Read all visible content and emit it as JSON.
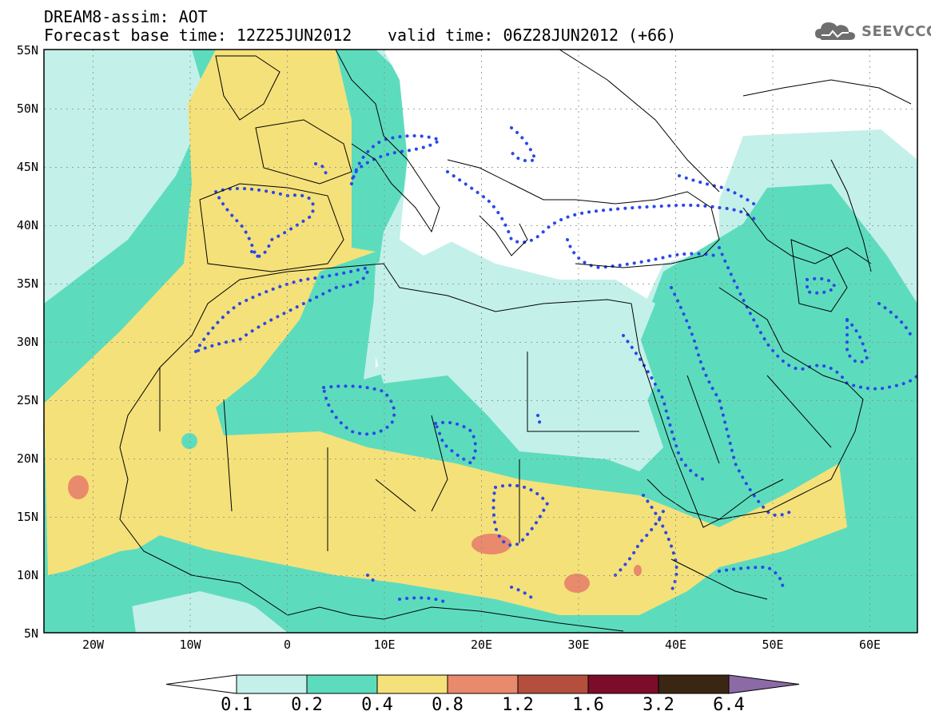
{
  "header": {
    "title": "DREAM8-assim: AOT",
    "base_time": "Forecast base time: 12Z25JUN2012",
    "valid_time": "valid time: 06Z28JUN2012 (+66)"
  },
  "logo": {
    "text": "SEEVCCC",
    "icon": "cloud-icon"
  },
  "map": {
    "lat_labels": [
      "55N",
      "50N",
      "45N",
      "40N",
      "35N",
      "30N",
      "25N",
      "20N",
      "15N",
      "10N",
      "5N"
    ],
    "lon_labels": [
      "20W",
      "10W",
      "0",
      "10E",
      "20E",
      "30E",
      "40E",
      "50E",
      "60E"
    ],
    "lat_range": [
      5,
      55
    ],
    "lon_range": [
      -25,
      65
    ],
    "grid": true
  },
  "colorbar": {
    "levels": [
      "0.1",
      "0.2",
      "0.4",
      "0.8",
      "1.2",
      "1.6",
      "3.2",
      "6.4"
    ],
    "colors": [
      "#c4f0ea",
      "#5ddcbd",
      "#f5e17a",
      "#e98a6c",
      "#b44f3e",
      "#7c0d2a",
      "#3b2613",
      "#8c6aa6"
    ],
    "under_color": "#ffffff",
    "over_color": "#8c6aa6"
  },
  "legend_colors": {
    "contour_dotted": "#2b48e8",
    "land_outline": "#000000"
  }
}
